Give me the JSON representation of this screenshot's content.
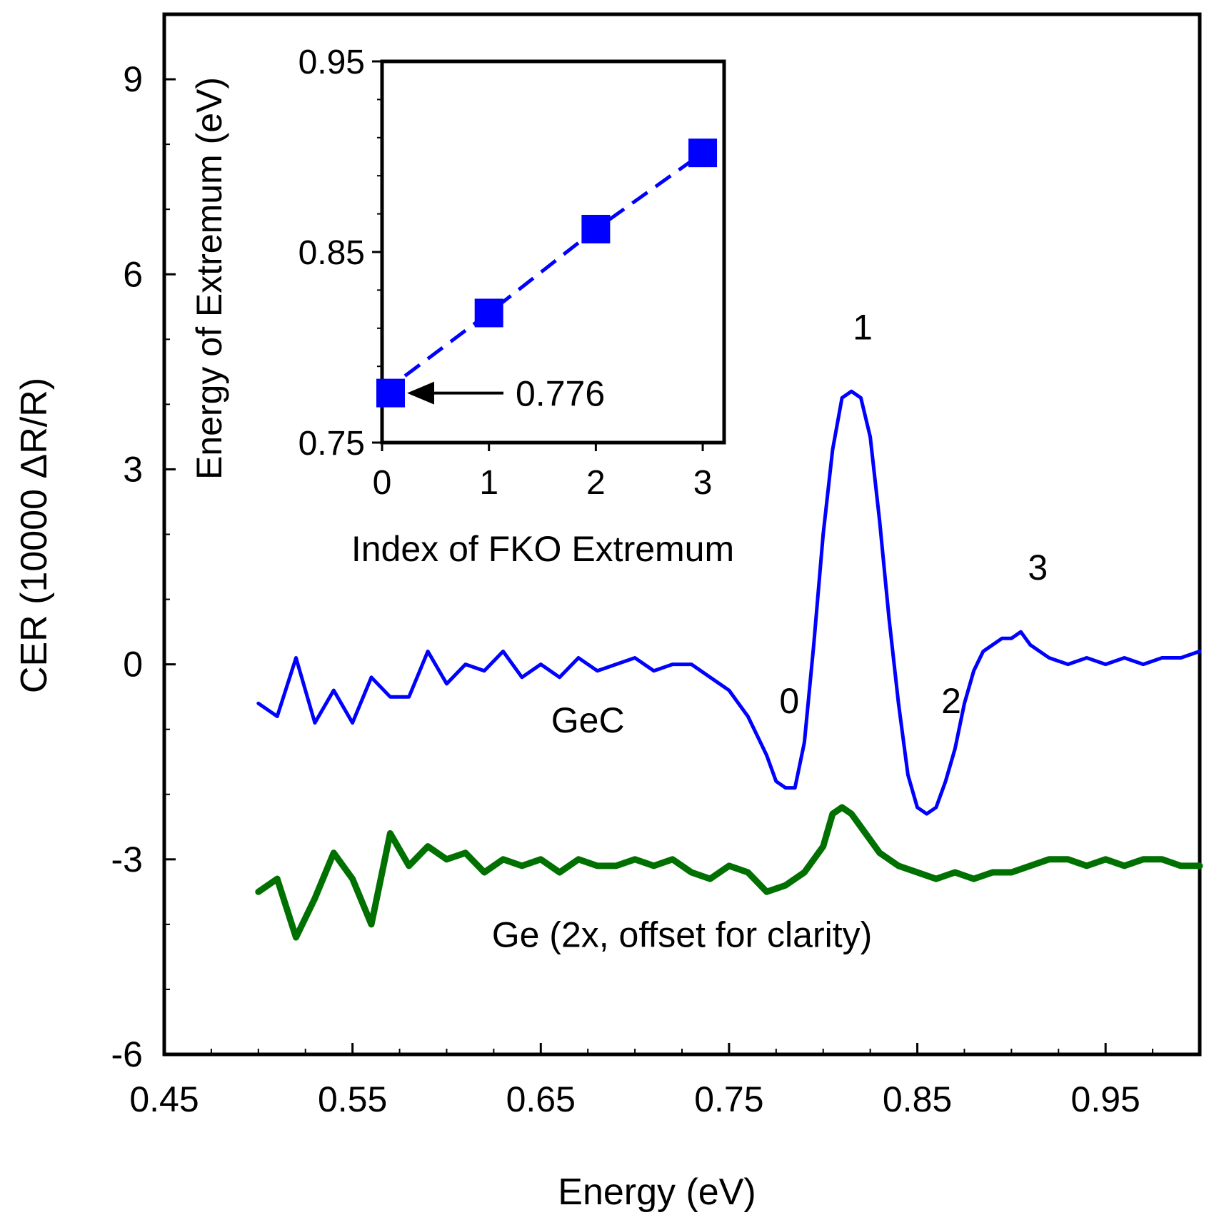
{
  "chart_data": [
    {
      "type": "line",
      "xlabel": "Energy (eV)",
      "ylabel": "CER (10000 ΔR/R)",
      "xlim": [
        0.45,
        1.0
      ],
      "ylim": [
        -6,
        10
      ],
      "xticks": [
        "0.45",
        "0.55",
        "0.65",
        "0.75",
        "0.85",
        "0.95"
      ],
      "yticks": [
        "-6",
        "-3",
        "0",
        "3",
        "6",
        "9"
      ],
      "grid": false,
      "series": [
        {
          "name": "GeC",
          "color": "#0000ff",
          "x": [
            0.5,
            0.51,
            0.52,
            0.53,
            0.54,
            0.55,
            0.56,
            0.57,
            0.58,
            0.59,
            0.6,
            0.61,
            0.62,
            0.63,
            0.64,
            0.65,
            0.66,
            0.67,
            0.68,
            0.69,
            0.7,
            0.71,
            0.72,
            0.73,
            0.74,
            0.75,
            0.755,
            0.76,
            0.765,
            0.77,
            0.775,
            0.78,
            0.785,
            0.79,
            0.795,
            0.8,
            0.805,
            0.81,
            0.815,
            0.82,
            0.825,
            0.83,
            0.835,
            0.84,
            0.845,
            0.85,
            0.855,
            0.86,
            0.865,
            0.87,
            0.875,
            0.88,
            0.885,
            0.89,
            0.895,
            0.9,
            0.905,
            0.91,
            0.915,
            0.92,
            0.93,
            0.94,
            0.95,
            0.96,
            0.97,
            0.98,
            0.99,
            1.0
          ],
          "y": [
            -0.6,
            -0.8,
            0.1,
            -0.9,
            -0.4,
            -0.9,
            -0.2,
            -0.5,
            -0.5,
            0.2,
            -0.3,
            0.0,
            -0.1,
            0.2,
            -0.2,
            0.0,
            -0.2,
            0.1,
            -0.1,
            0.0,
            0.1,
            -0.1,
            0.0,
            0.0,
            -0.2,
            -0.4,
            -0.6,
            -0.8,
            -1.1,
            -1.4,
            -1.8,
            -1.9,
            -1.9,
            -1.2,
            0.3,
            2.0,
            3.3,
            4.1,
            4.2,
            4.1,
            3.5,
            2.2,
            0.7,
            -0.6,
            -1.7,
            -2.2,
            -2.3,
            -2.2,
            -1.8,
            -1.3,
            -0.6,
            -0.1,
            0.2,
            0.3,
            0.4,
            0.4,
            0.5,
            0.3,
            0.2,
            0.1,
            0.0,
            0.1,
            0.0,
            0.1,
            0.0,
            0.1,
            0.1,
            0.2
          ]
        },
        {
          "name": "Ge",
          "color": "#007000",
          "x": [
            0.5,
            0.51,
            0.52,
            0.53,
            0.54,
            0.55,
            0.56,
            0.57,
            0.58,
            0.59,
            0.6,
            0.61,
            0.62,
            0.63,
            0.64,
            0.65,
            0.66,
            0.67,
            0.68,
            0.69,
            0.7,
            0.71,
            0.72,
            0.73,
            0.74,
            0.75,
            0.76,
            0.77,
            0.78,
            0.79,
            0.8,
            0.805,
            0.81,
            0.815,
            0.82,
            0.83,
            0.84,
            0.85,
            0.86,
            0.87,
            0.88,
            0.89,
            0.9,
            0.91,
            0.92,
            0.93,
            0.94,
            0.95,
            0.96,
            0.97,
            0.98,
            0.99,
            1.0
          ],
          "y": [
            -3.5,
            -3.3,
            -4.2,
            -3.6,
            -2.9,
            -3.3,
            -4.0,
            -2.6,
            -3.1,
            -2.8,
            -3.0,
            -2.9,
            -3.2,
            -3.0,
            -3.1,
            -3.0,
            -3.2,
            -3.0,
            -3.1,
            -3.1,
            -3.0,
            -3.1,
            -3.0,
            -3.2,
            -3.3,
            -3.1,
            -3.2,
            -3.5,
            -3.4,
            -3.2,
            -2.8,
            -2.3,
            -2.2,
            -2.3,
            -2.5,
            -2.9,
            -3.1,
            -3.2,
            -3.3,
            -3.2,
            -3.3,
            -3.2,
            -3.2,
            -3.1,
            -3.0,
            -3.0,
            -3.1,
            -3.0,
            -3.1,
            -3.0,
            -3.0,
            -3.1,
            -3.1
          ]
        }
      ],
      "annotations": [
        {
          "text": "0",
          "x": 0.782,
          "y": -0.75
        },
        {
          "text": "1",
          "x": 0.821,
          "y": 5.0
        },
        {
          "text": "2",
          "x": 0.868,
          "y": -0.75
        },
        {
          "text": "3",
          "x": 0.914,
          "y": 1.3
        },
        {
          "text": "GeC",
          "x": 0.675,
          "y": -1.05
        },
        {
          "text": "Ge (2x, offset for clarity)",
          "x": 0.725,
          "y": -4.35
        }
      ]
    },
    {
      "type": "line",
      "xlabel": "Index of FKO Extremum",
      "ylabel": "Energy of Extremum (eV)",
      "xlim": [
        0,
        3.2
      ],
      "ylim": [
        0.75,
        0.95
      ],
      "xticks": [
        "0",
        "1",
        "2",
        "3"
      ],
      "yticks": [
        "0.75",
        "0.85",
        "0.95"
      ],
      "series": [
        {
          "color": "#0000ff",
          "x": [
            0,
            1,
            2,
            3
          ],
          "y": [
            0.776,
            0.818,
            0.862,
            0.902
          ]
        }
      ],
      "annotations": [
        {
          "text": "0.776",
          "x": 1.3,
          "y": 0.776
        }
      ]
    }
  ]
}
